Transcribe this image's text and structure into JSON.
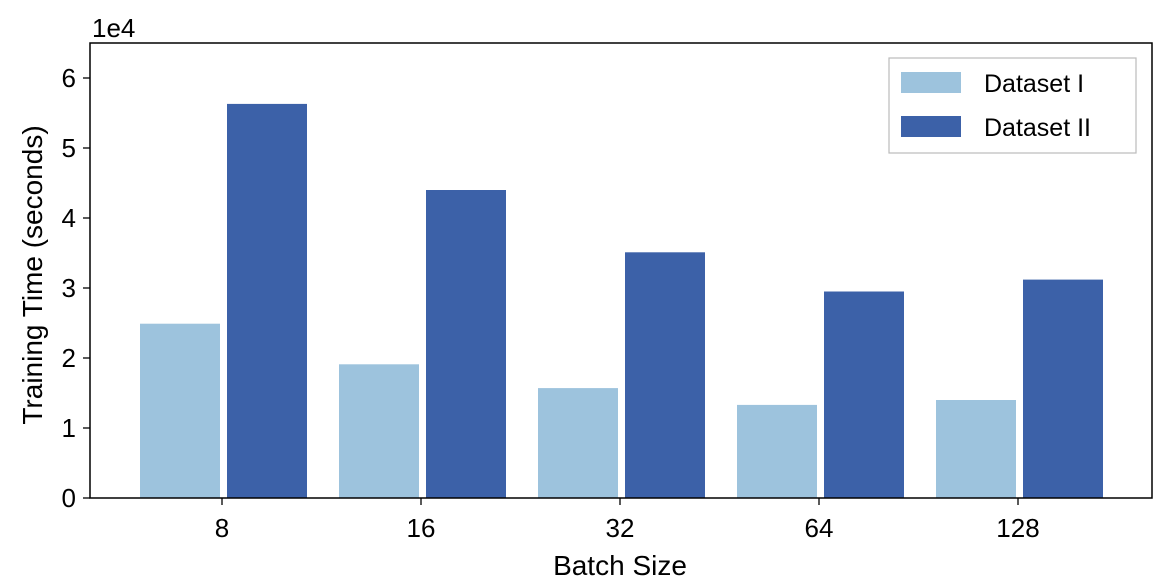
{
  "chart_data": {
    "type": "bar",
    "title": "",
    "xlabel": "Batch Size",
    "ylabel": "Training Time (seconds)",
    "y_multiplier_label": "1e4",
    "y_multiplier": 10000,
    "categories": [
      "8",
      "16",
      "32",
      "64",
      "128"
    ],
    "ylim": [
      0,
      6.5
    ],
    "yticks": [
      0,
      1,
      2,
      3,
      4,
      5,
      6
    ],
    "ytick_labels": [
      "0",
      "1",
      "2",
      "3",
      "4",
      "5",
      "6"
    ],
    "grid": false,
    "legend_position": "top-right",
    "series": [
      {
        "name": "Dataset I",
        "color": "#9dc3dd",
        "values": [
          2.49,
          1.91,
          1.57,
          1.33,
          1.4
        ]
      },
      {
        "name": "Dataset II",
        "color": "#3c61a8",
        "values": [
          5.63,
          4.4,
          3.51,
          2.95,
          3.12
        ]
      }
    ]
  }
}
